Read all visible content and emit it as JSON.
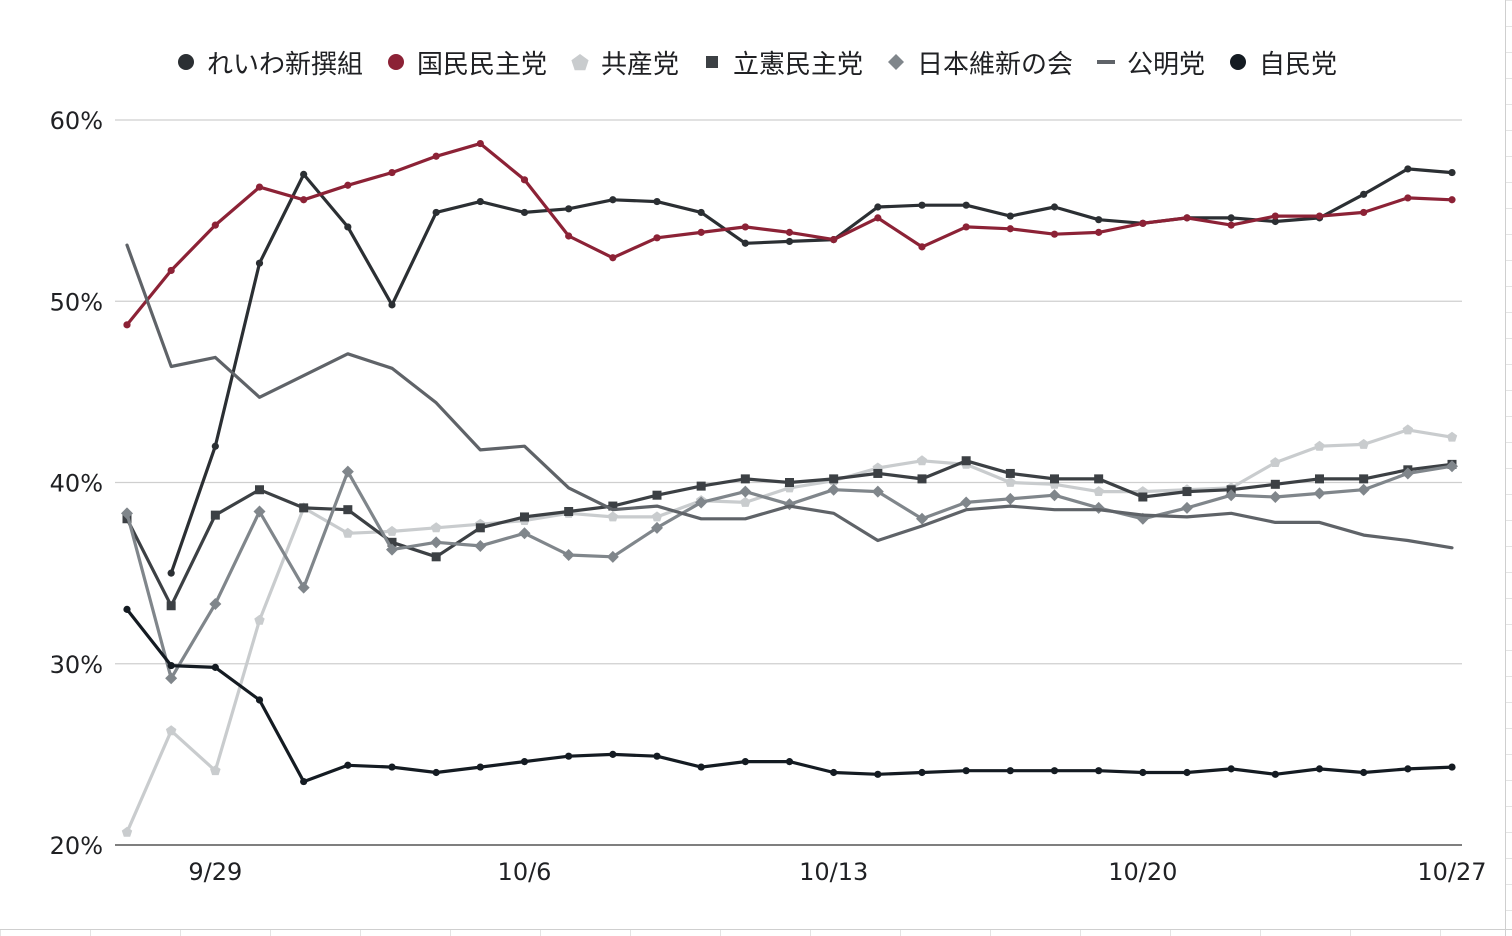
{
  "chart_data": {
    "type": "line",
    "title": "",
    "xlabel": "",
    "ylabel": "",
    "ylim": [
      20,
      60
    ],
    "y_ticks": [
      "20%",
      "30%",
      "40%",
      "50%",
      "60%"
    ],
    "x_ticks": [
      {
        "label": "9/29",
        "index": 2
      },
      {
        "label": "10/6",
        "index": 9
      },
      {
        "label": "10/13",
        "index": 16
      },
      {
        "label": "10/20",
        "index": 23
      },
      {
        "label": "10/27",
        "index": 30
      }
    ],
    "x": [
      "9/27",
      "9/28",
      "9/29",
      "9/30",
      "10/1",
      "10/2",
      "10/3",
      "10/4",
      "10/5",
      "10/6",
      "10/7",
      "10/8",
      "10/9",
      "10/10",
      "10/11",
      "10/12",
      "10/13",
      "10/14",
      "10/15",
      "10/16",
      "10/17",
      "10/18",
      "10/19",
      "10/20",
      "10/21",
      "10/22",
      "10/23",
      "10/24",
      "10/25",
      "10/26",
      "10/27"
    ],
    "grid": true,
    "legend_position": "top",
    "series": [
      {
        "name": "れいわ新撰組",
        "color": "#2b2f33",
        "marker": "circle",
        "values": [
          null,
          35.0,
          42.0,
          52.1,
          57.0,
          54.1,
          49.8,
          54.9,
          55.5,
          54.9,
          55.1,
          55.6,
          55.5,
          54.9,
          53.2,
          53.3,
          53.4,
          55.2,
          55.3,
          55.3,
          54.7,
          55.2,
          54.5,
          54.3,
          54.6,
          54.6,
          54.4,
          54.6,
          55.9,
          57.3,
          57.1
        ]
      },
      {
        "name": "国民民主党",
        "color": "#8c2236",
        "marker": "circle",
        "values": [
          48.7,
          51.7,
          54.2,
          56.3,
          55.6,
          56.4,
          57.1,
          58.0,
          58.7,
          56.7,
          53.6,
          52.4,
          53.5,
          53.8,
          54.1,
          53.8,
          53.4,
          54.6,
          53.0,
          54.1,
          54.0,
          53.7,
          53.8,
          54.3,
          54.6,
          54.2,
          54.7,
          54.7,
          54.9,
          55.7,
          55.6
        ]
      },
      {
        "name": "共産党",
        "color": "#c9ccce",
        "marker": "pentagon",
        "values": [
          20.7,
          26.3,
          24.1,
          32.4,
          38.6,
          37.2,
          37.3,
          37.5,
          37.7,
          37.9,
          38.3,
          38.1,
          38.1,
          39.0,
          38.9,
          39.7,
          40.1,
          40.8,
          41.2,
          41.0,
          40.0,
          39.9,
          39.5,
          39.5,
          39.6,
          39.7,
          41.1,
          42.0,
          42.1,
          42.9,
          42.5
        ]
      },
      {
        "name": "立憲民主党",
        "color": "#3c4044",
        "marker": "square",
        "values": [
          38.0,
          33.2,
          38.2,
          39.6,
          38.6,
          38.5,
          36.7,
          35.9,
          37.5,
          38.1,
          38.4,
          38.7,
          39.3,
          39.8,
          40.2,
          40.0,
          40.2,
          40.5,
          40.2,
          41.2,
          40.5,
          40.2,
          40.2,
          39.2,
          39.5,
          39.6,
          39.9,
          40.2,
          40.2,
          40.7,
          41.0
        ]
      },
      {
        "name": "日本維新の会",
        "color": "#80868b",
        "marker": "diamond",
        "values": [
          38.3,
          29.2,
          33.3,
          38.4,
          34.2,
          40.6,
          36.3,
          36.7,
          36.5,
          37.2,
          36.0,
          35.9,
          37.5,
          38.9,
          39.5,
          38.8,
          39.6,
          39.5,
          38.0,
          38.9,
          39.1,
          39.3,
          38.6,
          38.0,
          38.6,
          39.3,
          39.2,
          39.4,
          39.6,
          40.5,
          40.9
        ]
      },
      {
        "name": "公明党",
        "color": "#5f6368",
        "marker": "dash",
        "values": [
          53.1,
          46.4,
          46.9,
          44.7,
          45.9,
          47.1,
          46.3,
          44.4,
          41.8,
          42.0,
          39.7,
          38.5,
          38.7,
          38.0,
          38.0,
          38.7,
          38.3,
          36.8,
          37.6,
          38.5,
          38.7,
          38.5,
          38.5,
          38.2,
          38.1,
          38.3,
          37.8,
          37.8,
          37.1,
          36.8,
          36.4
        ]
      },
      {
        "name": "自民党",
        "color": "#141b22",
        "marker": "circle",
        "values": [
          33.0,
          29.9,
          29.8,
          28.0,
          23.5,
          24.4,
          24.3,
          24.0,
          24.3,
          24.6,
          24.9,
          25.0,
          24.9,
          24.3,
          24.6,
          24.6,
          24.0,
          23.9,
          24.0,
          24.1,
          24.1,
          24.1,
          24.1,
          24.0,
          24.0,
          24.2,
          23.9,
          24.2,
          24.0,
          24.2,
          24.3
        ]
      }
    ]
  }
}
